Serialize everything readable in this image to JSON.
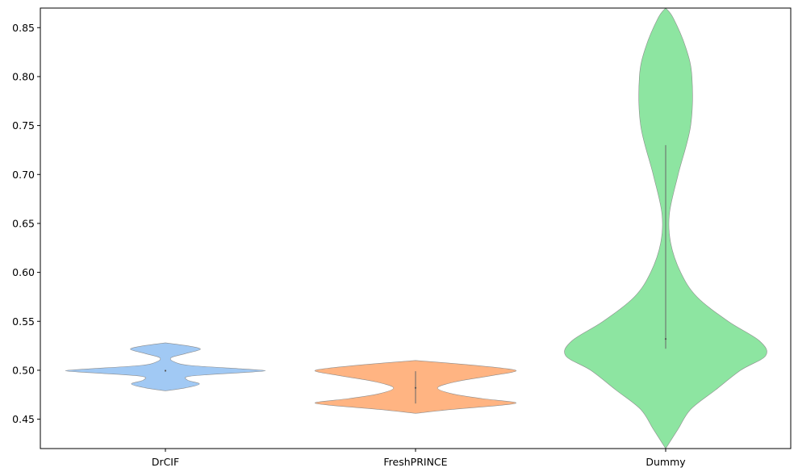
{
  "chart_data": {
    "type": "violin",
    "title": "",
    "xlabel": "",
    "ylabel": "",
    "ylim": [
      0.42,
      0.87
    ],
    "yticks": [
      0.45,
      0.5,
      0.55,
      0.6,
      0.65,
      0.7,
      0.75,
      0.8,
      0.85
    ],
    "ytick_labels": [
      "0.45",
      "0.50",
      "0.55",
      "0.60",
      "0.65",
      "0.70",
      "0.75",
      "0.80",
      "0.85"
    ],
    "grid": false,
    "categories": [
      "DrCIF",
      "FreshPRINCE",
      "Dummy"
    ],
    "series": [
      {
        "category": "DrCIF",
        "color": "#a1c9f4",
        "box": {
          "q1": 0.4995,
          "median": 0.4995,
          "q3": 0.5005
        },
        "density": [
          [
            0.479,
            0.0
          ],
          [
            0.482,
            0.2
          ],
          [
            0.486,
            0.34
          ],
          [
            0.49,
            0.22
          ],
          [
            0.494,
            0.25
          ],
          [
            0.4975,
            0.75
          ],
          [
            0.4995,
            1.0
          ],
          [
            0.5015,
            0.75
          ],
          [
            0.505,
            0.24
          ],
          [
            0.509,
            0.08
          ],
          [
            0.513,
            0.06
          ],
          [
            0.517,
            0.2
          ],
          [
            0.5215,
            0.35
          ],
          [
            0.525,
            0.22
          ],
          [
            0.528,
            0.0
          ]
        ]
      },
      {
        "category": "FreshPRINCE",
        "color": "#ffb482",
        "box": {
          "q1": 0.466,
          "median": 0.482,
          "q3": 0.499
        },
        "density": [
          [
            0.456,
            0.0
          ],
          [
            0.46,
            0.3
          ],
          [
            0.464,
            0.68
          ],
          [
            0.467,
            0.82
          ],
          [
            0.471,
            0.55
          ],
          [
            0.476,
            0.3
          ],
          [
            0.482,
            0.18
          ],
          [
            0.488,
            0.32
          ],
          [
            0.494,
            0.6
          ],
          [
            0.499,
            0.82
          ],
          [
            0.502,
            0.72
          ],
          [
            0.506,
            0.4
          ],
          [
            0.51,
            0.0
          ]
        ]
      },
      {
        "category": "Dummy",
        "color": "#8de5a1",
        "box": {
          "q1": 0.522,
          "median": 0.532,
          "q3": 0.73
        },
        "density": [
          [
            0.42,
            0.0
          ],
          [
            0.44,
            0.01
          ],
          [
            0.46,
            0.02
          ],
          [
            0.48,
            0.04
          ],
          [
            0.5,
            0.06
          ],
          [
            0.515,
            0.08
          ],
          [
            0.53,
            0.075
          ],
          [
            0.55,
            0.05
          ],
          [
            0.575,
            0.025
          ],
          [
            0.6,
            0.012
          ],
          [
            0.63,
            0.004
          ],
          [
            0.66,
            0.003
          ],
          [
            0.7,
            0.01
          ],
          [
            0.75,
            0.02
          ],
          [
            0.8,
            0.021
          ],
          [
            0.83,
            0.016
          ],
          [
            0.86,
            0.006
          ],
          [
            0.87,
            0.0
          ]
        ]
      }
    ]
  }
}
